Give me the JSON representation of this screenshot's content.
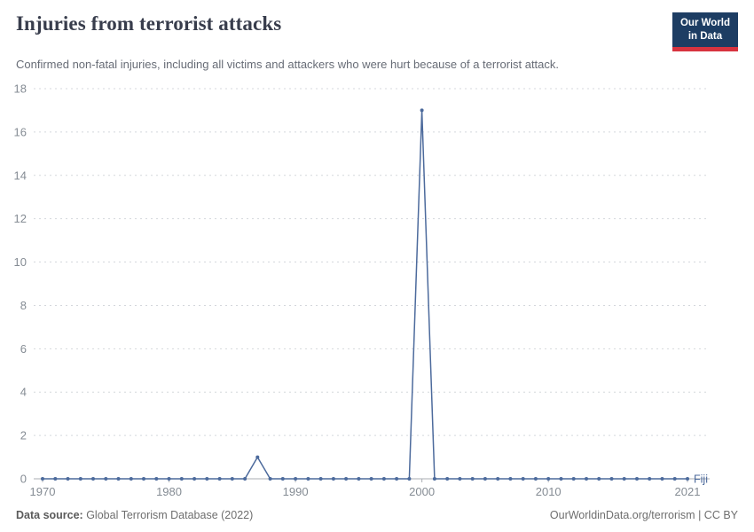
{
  "header": {
    "title": "Injuries from terrorist attacks",
    "logo_line1": "Our World",
    "logo_line2": "in Data"
  },
  "subtitle": "Confirmed non-fatal injuries, including all victims and attackers who were hurt because of a terrorist attack.",
  "footer": {
    "source_label": "Data source:",
    "source_text": " Global Terrorism Database (2022)",
    "right_text": "OurWorldinData.org/terrorism | CC BY"
  },
  "colors": {
    "line": "#4c6a9c",
    "grid": "#d4d7dc",
    "baseline": "#a9adb3",
    "axis_text": "#858c94",
    "title": "#383d4c",
    "subtitle": "#676c76",
    "logo_bg": "#1d3d63",
    "logo_red": "#d7333f"
  },
  "chart_data": {
    "type": "line",
    "title": "Injuries from terrorist attacks",
    "entity": "Fiji",
    "xlabel": "",
    "ylabel": "",
    "ylim": [
      0,
      18
    ],
    "yticks": [
      0,
      2,
      4,
      6,
      8,
      10,
      12,
      14,
      16,
      18
    ],
    "xticks": [
      1970,
      1980,
      1990,
      2000,
      2010,
      2021
    ],
    "grid": "horizontal-dashed",
    "legend": "line-end-label",
    "x": [
      1970,
      1971,
      1972,
      1973,
      1974,
      1975,
      1976,
      1977,
      1978,
      1979,
      1980,
      1981,
      1982,
      1983,
      1984,
      1985,
      1986,
      1987,
      1988,
      1989,
      1990,
      1991,
      1992,
      1993,
      1994,
      1995,
      1996,
      1997,
      1998,
      1999,
      2000,
      2001,
      2002,
      2003,
      2004,
      2005,
      2006,
      2007,
      2008,
      2009,
      2010,
      2011,
      2012,
      2013,
      2014,
      2015,
      2016,
      2017,
      2018,
      2019,
      2020,
      2021
    ],
    "series": [
      {
        "name": "Fiji",
        "values": [
          0,
          0,
          0,
          0,
          0,
          0,
          0,
          0,
          0,
          0,
          0,
          0,
          0,
          0,
          0,
          0,
          0,
          1,
          0,
          0,
          0,
          0,
          0,
          0,
          0,
          0,
          0,
          0,
          0,
          0,
          17,
          0,
          0,
          0,
          0,
          0,
          0,
          0,
          0,
          0,
          0,
          0,
          0,
          0,
          0,
          0,
          0,
          0,
          0,
          0,
          0,
          0
        ]
      }
    ]
  }
}
